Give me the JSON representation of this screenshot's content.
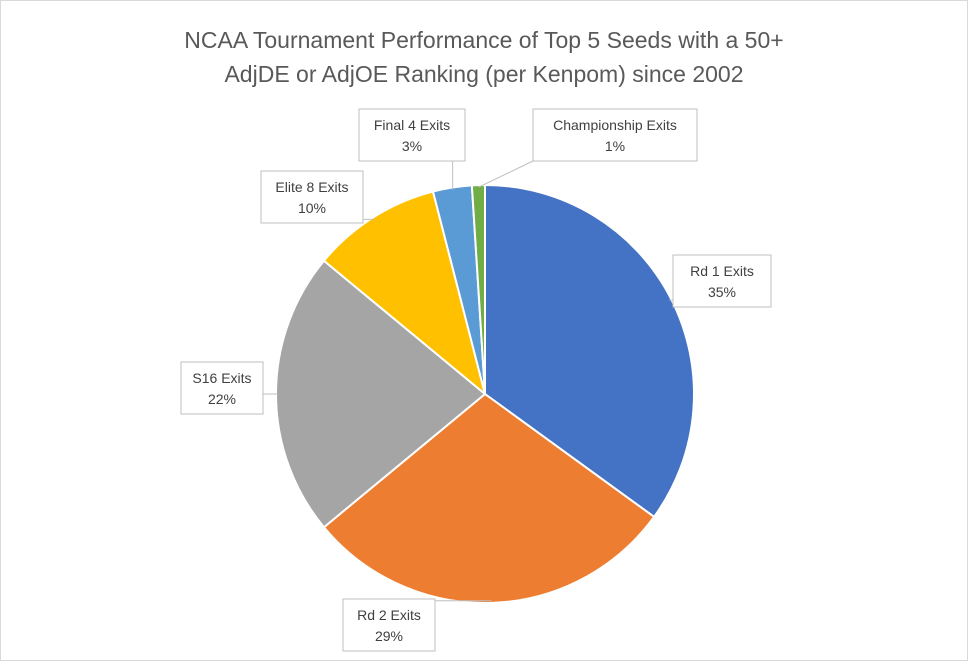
{
  "chart_data": {
    "type": "pie",
    "title": "NCAA Tournament Performance of Top 5 Seeds with a 50+ AdjDE or AdjOE Ranking (per Kenpom) since 2002",
    "title_lines": [
      "NCAA Tournament Performance of Top 5 Seeds with a 50+",
      "AdjDE or AdjOE Ranking (per Kenpom) since 2002"
    ],
    "slices": [
      {
        "label": "Rd 1 Exits",
        "value": 35,
        "display": "35%",
        "color": "#4472c4"
      },
      {
        "label": "Rd 2 Exits",
        "value": 29,
        "display": "29%",
        "color": "#ed7d31"
      },
      {
        "label": "S16 Exits",
        "value": 22,
        "display": "22%",
        "color": "#a5a5a5"
      },
      {
        "label": "Elite 8 Exits",
        "value": 10,
        "display": "10%",
        "color": "#ffc000"
      },
      {
        "label": "Final 4 Exits",
        "value": 3,
        "display": "3%",
        "color": "#5b9bd5"
      },
      {
        "label": "Championship Exits",
        "value": 1,
        "display": "1%",
        "color": "#70ad47"
      }
    ],
    "legend": "none",
    "data_labels": "callouts"
  }
}
